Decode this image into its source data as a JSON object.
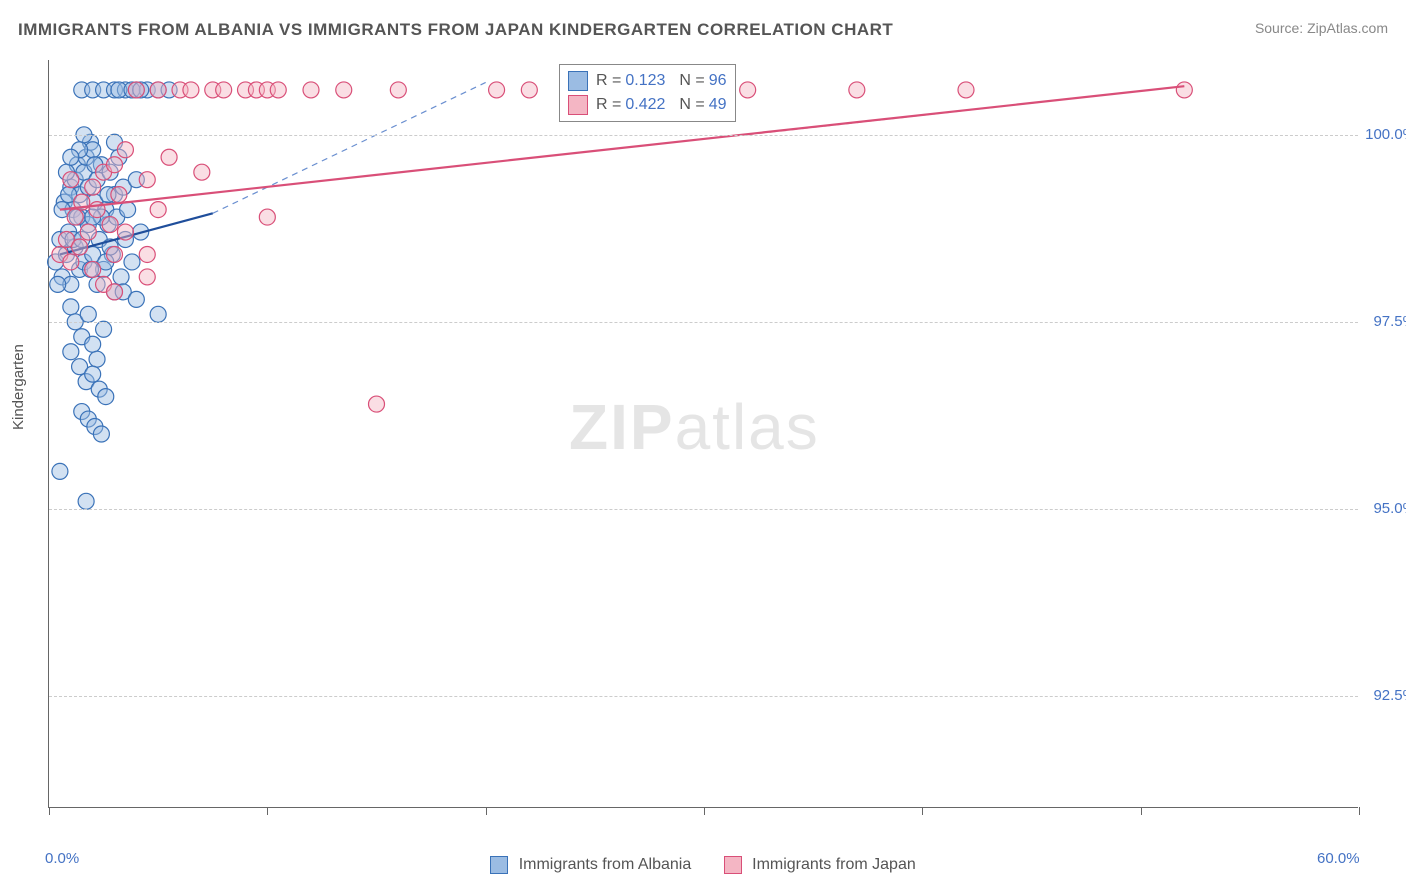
{
  "title": "IMMIGRANTS FROM ALBANIA VS IMMIGRANTS FROM JAPAN KINDERGARTEN CORRELATION CHART",
  "source_label": "Source:",
  "source_value": "ZipAtlas.com",
  "ylabel": "Kindergarten",
  "watermark": {
    "bold": "ZIP",
    "light": "atlas"
  },
  "chart": {
    "type": "scatter",
    "xlim": [
      0,
      60
    ],
    "ylim": [
      91,
      101
    ],
    "x_ticks": [
      0,
      10,
      20,
      30,
      40,
      50,
      60
    ],
    "x_tick_labels": [
      "0.0%",
      "",
      "",
      "",
      "",
      "",
      "60.0%"
    ],
    "y_gridlines": [
      92.5,
      95.0,
      97.5,
      100.0
    ],
    "y_tick_labels": [
      "92.5%",
      "95.0%",
      "97.5%",
      "100.0%"
    ],
    "grid_color": "#cccccc",
    "axis_color": "#666666",
    "background_color": "#ffffff",
    "marker_radius": 8,
    "marker_opacity": 0.45,
    "marker_stroke_width": 1.2,
    "series": [
      {
        "name": "Immigrants from Albania",
        "fill": "#9bbce3",
        "stroke": "#3a72b8",
        "r_value": "0.123",
        "n_value": "96",
        "trend_solid": {
          "x1": 0.5,
          "y1": 98.4,
          "x2": 7.5,
          "y2": 98.95,
          "color": "#1f4e9b",
          "width": 2.2
        },
        "trend_dashed": {
          "x1": 7.5,
          "y1": 98.95,
          "x2": 20.0,
          "y2": 100.7,
          "color": "#6a8fd0",
          "width": 1.2
        },
        "points": [
          [
            0.3,
            98.3
          ],
          [
            0.5,
            98.6
          ],
          [
            0.6,
            98.1
          ],
          [
            0.7,
            99.1
          ],
          [
            0.8,
            98.4
          ],
          [
            0.9,
            98.7
          ],
          [
            1.0,
            99.3
          ],
          [
            1.0,
            98.0
          ],
          [
            1.1,
            99.0
          ],
          [
            1.2,
            98.5
          ],
          [
            1.2,
            99.4
          ],
          [
            1.3,
            99.6
          ],
          [
            1.4,
            98.2
          ],
          [
            1.4,
            99.2
          ],
          [
            1.5,
            98.9
          ],
          [
            1.5,
            100.6
          ],
          [
            1.6,
            99.5
          ],
          [
            1.6,
            98.3
          ],
          [
            1.7,
            99.7
          ],
          [
            1.8,
            98.8
          ],
          [
            1.8,
            99.3
          ],
          [
            1.9,
            99.9
          ],
          [
            2.0,
            100.6
          ],
          [
            2.0,
            98.4
          ],
          [
            2.1,
            99.1
          ],
          [
            2.2,
            98.0
          ],
          [
            2.2,
            99.4
          ],
          [
            2.3,
            98.6
          ],
          [
            2.4,
            99.6
          ],
          [
            2.5,
            100.6
          ],
          [
            2.5,
            98.2
          ],
          [
            2.6,
            99.0
          ],
          [
            2.7,
            98.8
          ],
          [
            2.8,
            99.5
          ],
          [
            2.9,
            98.4
          ],
          [
            3.0,
            99.2
          ],
          [
            3.0,
            100.6
          ],
          [
            3.1,
            98.9
          ],
          [
            3.2,
            99.7
          ],
          [
            3.3,
            98.1
          ],
          [
            3.4,
            99.3
          ],
          [
            3.5,
            100.6
          ],
          [
            3.5,
            98.6
          ],
          [
            3.6,
            99.0
          ],
          [
            3.8,
            98.3
          ],
          [
            4.0,
            99.4
          ],
          [
            4.0,
            100.6
          ],
          [
            4.2,
            98.7
          ],
          [
            4.5,
            100.6
          ],
          [
            5.0,
            100.6
          ],
          [
            5.5,
            100.6
          ],
          [
            1.0,
            97.7
          ],
          [
            1.2,
            97.5
          ],
          [
            1.5,
            97.3
          ],
          [
            1.8,
            97.6
          ],
          [
            2.0,
            97.2
          ],
          [
            2.2,
            97.0
          ],
          [
            2.5,
            97.4
          ],
          [
            1.0,
            97.1
          ],
          [
            1.4,
            96.9
          ],
          [
            1.7,
            96.7
          ],
          [
            2.0,
            96.8
          ],
          [
            2.3,
            96.6
          ],
          [
            2.6,
            96.5
          ],
          [
            1.5,
            96.3
          ],
          [
            1.8,
            96.2
          ],
          [
            2.1,
            96.1
          ],
          [
            2.4,
            96.0
          ],
          [
            0.5,
            95.5
          ],
          [
            1.7,
            95.1
          ],
          [
            5.0,
            97.6
          ],
          [
            3.0,
            99.9
          ],
          [
            3.2,
            100.6
          ],
          [
            3.8,
            100.6
          ],
          [
            4.2,
            100.6
          ],
          [
            2.0,
            99.8
          ],
          [
            1.6,
            100.0
          ],
          [
            1.4,
            99.8
          ],
          [
            2.4,
            98.9
          ],
          [
            2.8,
            98.5
          ],
          [
            3.0,
            97.9
          ],
          [
            0.8,
            99.5
          ],
          [
            0.6,
            99.0
          ],
          [
            1.0,
            99.7
          ],
          [
            0.4,
            98.0
          ],
          [
            1.1,
            98.6
          ],
          [
            2.7,
            99.2
          ],
          [
            1.9,
            98.2
          ],
          [
            2.1,
            99.6
          ],
          [
            0.9,
            99.2
          ],
          [
            1.3,
            98.9
          ],
          [
            2.6,
            98.3
          ],
          [
            3.4,
            97.9
          ],
          [
            4.0,
            97.8
          ],
          [
            2.0,
            98.9
          ],
          [
            1.5,
            98.6
          ]
        ]
      },
      {
        "name": "Immigrants from Japan",
        "fill": "#f4b6c4",
        "stroke": "#d94f78",
        "r_value": "0.422",
        "n_value": "49",
        "trend_solid": {
          "x1": 0.5,
          "y1": 99.0,
          "x2": 52.0,
          "y2": 100.65,
          "color": "#d94f78",
          "width": 2.2
        },
        "trend_dashed": {
          "x1": 32.0,
          "y1": 100.0,
          "x2": 52.0,
          "y2": 100.65,
          "color": "#e8a0b3",
          "width": 1.2
        },
        "points": [
          [
            0.5,
            98.4
          ],
          [
            0.8,
            98.6
          ],
          [
            1.0,
            98.3
          ],
          [
            1.2,
            98.9
          ],
          [
            1.4,
            98.5
          ],
          [
            1.5,
            99.1
          ],
          [
            1.8,
            98.7
          ],
          [
            2.0,
            99.3
          ],
          [
            2.2,
            99.0
          ],
          [
            2.5,
            99.5
          ],
          [
            2.8,
            98.8
          ],
          [
            3.0,
            99.6
          ],
          [
            3.2,
            99.2
          ],
          [
            3.5,
            99.8
          ],
          [
            4.0,
            100.6
          ],
          [
            4.5,
            99.4
          ],
          [
            5.0,
            100.6
          ],
          [
            5.5,
            99.7
          ],
          [
            6.0,
            100.6
          ],
          [
            6.5,
            100.6
          ],
          [
            7.0,
            99.5
          ],
          [
            7.5,
            100.6
          ],
          [
            8.0,
            100.6
          ],
          [
            9.0,
            100.6
          ],
          [
            9.5,
            100.6
          ],
          [
            10.0,
            100.6
          ],
          [
            10.5,
            100.6
          ],
          [
            12.0,
            100.6
          ],
          [
            13.5,
            100.6
          ],
          [
            16.0,
            100.6
          ],
          [
            20.5,
            100.6
          ],
          [
            22.0,
            100.6
          ],
          [
            24.0,
            100.6
          ],
          [
            28.0,
            100.6
          ],
          [
            32.0,
            100.6
          ],
          [
            37.0,
            100.6
          ],
          [
            42.0,
            100.6
          ],
          [
            52.0,
            100.6
          ],
          [
            2.0,
            98.2
          ],
          [
            2.5,
            98.0
          ],
          [
            3.0,
            97.9
          ],
          [
            4.5,
            98.1
          ],
          [
            5.0,
            99.0
          ],
          [
            3.5,
            98.7
          ],
          [
            3.0,
            98.4
          ],
          [
            10.0,
            98.9
          ],
          [
            4.5,
            98.4
          ],
          [
            15.0,
            96.4
          ],
          [
            1.0,
            99.4
          ]
        ]
      }
    ]
  },
  "stats_box": {
    "r_label": "R =",
    "n_label": "N ="
  },
  "bottom_legend_labels": [
    "Immigrants from Albania",
    "Immigrants from Japan"
  ]
}
